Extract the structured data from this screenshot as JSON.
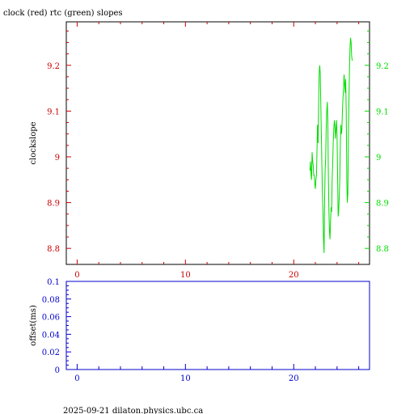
{
  "title": "clock (red) rtc (green) slopes",
  "footer": "2025-09-21  dilaton.physics.ubc.ca",
  "colors": {
    "red": "#cc0000",
    "green": "#00dd00",
    "blue": "#0000cc",
    "axis": "#000000",
    "background": "#ffffff"
  },
  "chart_data": [
    {
      "type": "line",
      "title": "clock (red) rtc (green) slopes",
      "ylabel": "clockslope",
      "xlim": [
        -1,
        27
      ],
      "ylim": [
        8.765,
        9.295
      ],
      "x_ticks": [
        0,
        10,
        20
      ],
      "x_minor_step": 2,
      "left_y_ticks": [
        "8.8",
        "8.9",
        "9",
        "9.1",
        "9.2"
      ],
      "left_y_ticks_color": "red",
      "right_y_ticks": [
        "8.8",
        "8.9",
        "9",
        "9.1",
        "9.2"
      ],
      "right_y_ticks_color": "green",
      "series": [
        {
          "name": "rtc",
          "color": "green",
          "points": [
            [
              21.5,
              8.97
            ],
            [
              21.55,
              8.99
            ],
            [
              21.6,
              8.96
            ],
            [
              21.65,
              8.95
            ],
            [
              21.7,
              9.01
            ],
            [
              21.75,
              8.99
            ],
            [
              21.8,
              8.98
            ],
            [
              21.85,
              8.96
            ],
            [
              21.9,
              8.96
            ],
            [
              21.95,
              8.94
            ],
            [
              22.0,
              8.93
            ],
            [
              22.05,
              8.95
            ],
            [
              22.1,
              8.96
            ],
            [
              22.15,
              9.01
            ],
            [
              22.2,
              9.07
            ],
            [
              22.25,
              9.03
            ],
            [
              22.3,
              9.12
            ],
            [
              22.35,
              9.18
            ],
            [
              22.4,
              9.2
            ],
            [
              22.45,
              9.18
            ],
            [
              22.5,
              9.12
            ],
            [
              22.55,
              9.05
            ],
            [
              22.6,
              8.98
            ],
            [
              22.65,
              8.92
            ],
            [
              22.7,
              8.88
            ],
            [
              22.75,
              8.82
            ],
            [
              22.8,
              8.79
            ],
            [
              22.85,
              8.9
            ],
            [
              22.9,
              8.97
            ],
            [
              22.95,
              9.0
            ],
            [
              23.0,
              9.06
            ],
            [
              23.05,
              9.1
            ],
            [
              23.1,
              9.12
            ],
            [
              23.15,
              9.08
            ],
            [
              23.2,
              8.96
            ],
            [
              23.25,
              8.88
            ],
            [
              23.3,
              8.84
            ],
            [
              23.35,
              8.82
            ],
            [
              23.4,
              8.86
            ],
            [
              23.45,
              8.89
            ],
            [
              23.5,
              8.88
            ],
            [
              23.55,
              8.95
            ],
            [
              23.6,
              8.99
            ],
            [
              23.65,
              9.03
            ],
            [
              23.7,
              9.06
            ],
            [
              23.75,
              9.08
            ],
            [
              23.8,
              9.07
            ],
            [
              23.85,
              9.04
            ],
            [
              23.9,
              9.06
            ],
            [
              23.95,
              9.08
            ],
            [
              24.0,
              9.05
            ],
            [
              24.05,
              8.96
            ],
            [
              24.1,
              8.87
            ],
            [
              24.15,
              8.88
            ],
            [
              24.2,
              8.91
            ],
            [
              24.25,
              8.95
            ],
            [
              24.3,
              9.02
            ],
            [
              24.35,
              9.07
            ],
            [
              24.4,
              9.05
            ],
            [
              24.45,
              9.06
            ],
            [
              24.5,
              9.1
            ],
            [
              24.55,
              9.13
            ],
            [
              24.6,
              9.15
            ],
            [
              24.65,
              9.18
            ],
            [
              24.7,
              9.16
            ],
            [
              24.75,
              9.14
            ],
            [
              24.8,
              9.17
            ],
            [
              24.85,
              9.1
            ],
            [
              24.9,
              8.95
            ],
            [
              24.95,
              8.9
            ],
            [
              25.0,
              8.92
            ],
            [
              25.05,
              9.05
            ],
            [
              25.1,
              9.13
            ],
            [
              25.15,
              9.19
            ],
            [
              25.2,
              9.24
            ],
            [
              25.25,
              9.26
            ],
            [
              25.3,
              9.25
            ],
            [
              25.35,
              9.22
            ],
            [
              25.4,
              9.21
            ]
          ]
        }
      ]
    },
    {
      "type": "line",
      "ylabel": "offset(ms)",
      "xlim": [
        -1,
        27
      ],
      "ylim": [
        0,
        0.1
      ],
      "x_ticks": [
        0,
        10,
        20
      ],
      "x_minor_step": 2,
      "y_ticks": [
        "0",
        "0.02",
        "0.04",
        "0.06",
        "0.08",
        "0.1"
      ],
      "y_ticks_color": "blue",
      "series": []
    }
  ]
}
